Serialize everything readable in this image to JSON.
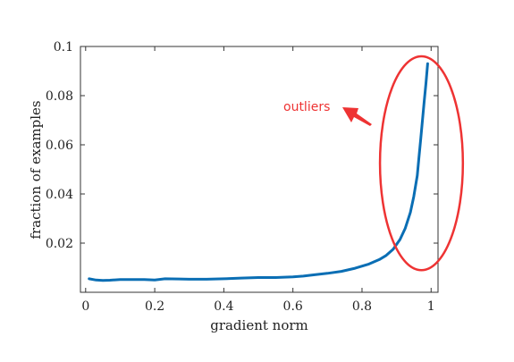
{
  "chart_data": {
    "type": "line",
    "xlabel": "gradient norm",
    "ylabel": "fraction of examples",
    "xlim": [
      -0.015,
      1.02
    ],
    "ylim": [
      0.0,
      0.1
    ],
    "grid": false,
    "x_ticks": [
      "0",
      "0.2",
      "0.4",
      "0.6",
      "0.8",
      "1"
    ],
    "x_tick_values": [
      0,
      0.2,
      0.4,
      0.6,
      0.8,
      1.0
    ],
    "y_ticks": [
      "0.02",
      "0.04",
      "0.06",
      "0.08",
      "0.1"
    ],
    "y_tick_values": [
      0.02,
      0.04,
      0.06,
      0.08,
      0.1
    ],
    "series": [
      {
        "color": "#0a6eb4",
        "x": [
          0.01,
          0.03,
          0.05,
          0.07,
          0.1,
          0.13,
          0.17,
          0.2,
          0.23,
          0.27,
          0.3,
          0.35,
          0.4,
          0.45,
          0.5,
          0.55,
          0.6,
          0.63,
          0.66,
          0.7,
          0.74,
          0.78,
          0.82,
          0.85,
          0.87,
          0.89,
          0.91,
          0.925,
          0.94,
          0.95,
          0.96,
          0.965,
          0.97,
          0.975,
          0.98,
          0.985,
          0.99
        ],
        "y": [
          0.0055,
          0.005,
          0.0048,
          0.0049,
          0.0052,
          0.0052,
          0.0052,
          0.005,
          0.0055,
          0.0054,
          0.0053,
          0.0053,
          0.0055,
          0.0058,
          0.006,
          0.006,
          0.0063,
          0.0066,
          0.0071,
          0.0077,
          0.0085,
          0.0098,
          0.0115,
          0.0133,
          0.015,
          0.0175,
          0.0215,
          0.026,
          0.0325,
          0.039,
          0.0475,
          0.055,
          0.0625,
          0.07,
          0.0775,
          0.085,
          0.093
        ]
      }
    ],
    "annotation": {
      "text": "outliers",
      "color": "#ee3333",
      "ellipse_center": [
        0.972,
        0.0525
      ],
      "ellipse_radii": [
        0.12,
        0.0435
      ]
    }
  }
}
